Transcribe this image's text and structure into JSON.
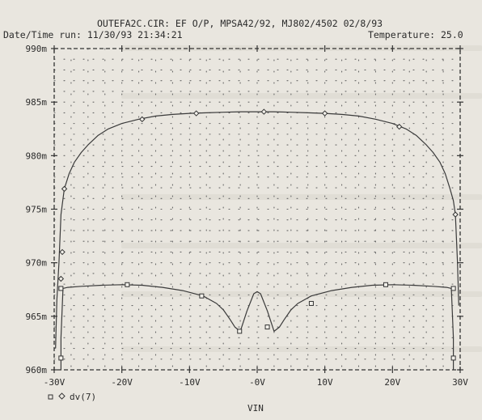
{
  "header": {
    "title": "OUTEFA2C.CIR:  EF O/P, MPSA42/92, MJ802/4502  02/8/93",
    "run_label": "Date/Time run: 11/30/93  21:34:21",
    "temp_label": "Temperature: 25.0"
  },
  "chart_data": {
    "type": "line",
    "xlabel": "VIN",
    "ylabel": "",
    "xlim": [
      -30,
      30
    ],
    "ylim": [
      960,
      990
    ],
    "grid": true,
    "x_ticks": [
      "-30V",
      "-20V",
      "-10V",
      "-0V",
      "10V",
      "20V",
      "30V"
    ],
    "x_tick_values": [
      -30,
      -20,
      -10,
      0,
      10,
      20,
      30
    ],
    "y_ticks": [
      "960m",
      "965m",
      "970m",
      "975m",
      "980m",
      "985m",
      "990m"
    ],
    "y_tick_values": [
      960,
      965,
      970,
      975,
      980,
      985,
      990
    ],
    "series": [
      {
        "name": "",
        "marker": "square",
        "x": [
          -29.0,
          -29.0,
          -28.7,
          -28.0,
          -26,
          -23,
          -20,
          -17,
          -14,
          -11,
          -8,
          -6,
          -5,
          -4,
          -3.3,
          -2.5,
          -1.5,
          -0.5,
          0,
          0.5,
          1.5,
          2.5,
          3.3,
          4,
          5,
          6,
          8,
          11,
          14,
          17,
          20,
          23,
          26,
          28.0,
          28.7,
          29.0,
          29.0
        ],
        "y": [
          960.0,
          963.0,
          967.6,
          967.7,
          967.8,
          967.9,
          967.95,
          967.9,
          967.7,
          967.4,
          966.9,
          966.2,
          965.6,
          964.7,
          964.0,
          963.6,
          965.5,
          967.1,
          967.3,
          967.1,
          965.5,
          963.6,
          964.0,
          964.7,
          965.6,
          966.2,
          966.9,
          967.4,
          967.7,
          967.9,
          967.95,
          967.9,
          967.8,
          967.7,
          967.6,
          963.0,
          960.0
        ]
      },
      {
        "name": "dv(7)",
        "marker": "diamond",
        "x": [
          -29.8,
          -29.6,
          -29.3,
          -29,
          -28.5,
          -27.8,
          -27,
          -26,
          -25,
          -23.5,
          -22,
          -20,
          -17.5,
          -15,
          -12.5,
          -10,
          -7.5,
          -5,
          -2.5,
          0,
          2.5,
          5,
          7.5,
          10,
          12.5,
          15,
          17.5,
          20,
          22,
          23.5,
          25,
          26,
          27,
          27.8,
          28.5,
          29,
          29.3,
          29.6,
          29.8
        ],
        "y": [
          962.0,
          966.5,
          970.0,
          974.5,
          976.9,
          978.3,
          979.4,
          980.3,
          981.0,
          981.9,
          982.5,
          983.0,
          983.4,
          983.7,
          983.85,
          983.95,
          984.0,
          984.05,
          984.1,
          984.1,
          984.1,
          984.05,
          984.0,
          983.95,
          983.85,
          983.7,
          983.4,
          983.0,
          982.5,
          981.9,
          981.0,
          980.3,
          979.4,
          978.3,
          976.9,
          975.8,
          974.5,
          970.0,
          966.0
        ]
      }
    ],
    "markers": {
      "square": [
        [
          -29,
          961.1
        ],
        [
          -29,
          967.6
        ],
        [
          -19.2,
          967.95
        ],
        [
          -8.2,
          966.9
        ],
        [
          -2.6,
          963.6
        ],
        [
          1.5,
          964.0
        ],
        [
          8.0,
          966.2
        ],
        [
          19.0,
          967.95
        ],
        [
          29.0,
          961.1
        ],
        [
          29.0,
          967.6
        ]
      ],
      "diamond": [
        [
          -28.8,
          971.0
        ],
        [
          -29.0,
          968.5
        ],
        [
          -28.5,
          976.9
        ],
        [
          -17.0,
          983.4
        ],
        [
          -9.0,
          983.95
        ],
        [
          1.0,
          984.1
        ],
        [
          10.0,
          983.95
        ],
        [
          21.0,
          982.7
        ],
        [
          29.3,
          974.5
        ]
      ]
    },
    "legend": {
      "placement": "bottom-left",
      "entries": [
        "□ ◇ dv(7)"
      ]
    }
  }
}
